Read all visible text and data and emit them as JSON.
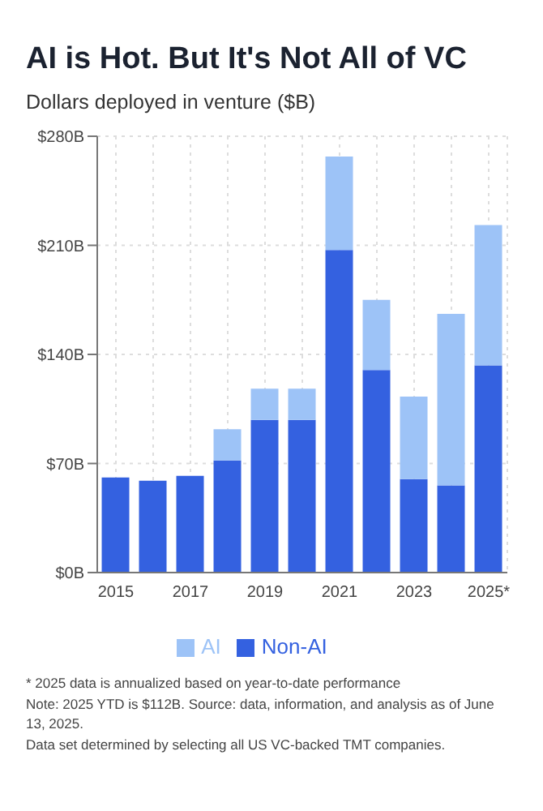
{
  "chart_data": {
    "type": "bar",
    "title": "AI is Hot. But It's Not All of VC",
    "subtitle": "Dollars deployed in venture ($B)",
    "categories": [
      "2015",
      null,
      "2017",
      null,
      "2019",
      null,
      "2021",
      null,
      "2023",
      null,
      "2025*"
    ],
    "series": [
      {
        "name": "Non-AI",
        "color": "#3461e0",
        "values": [
          61,
          59,
          62,
          72,
          98,
          98,
          207,
          130,
          60,
          56,
          133
        ]
      },
      {
        "name": "AI",
        "color": "#9dc3f7",
        "values": [
          0,
          0,
          0,
          20,
          20,
          20,
          60,
          45,
          53,
          110,
          90
        ]
      }
    ],
    "stacked": true,
    "ylim": [
      0,
      280
    ],
    "yticks": [
      {
        "value": 0,
        "label": "$0B"
      },
      {
        "value": 70,
        "label": "$70B"
      },
      {
        "value": 140,
        "label": "$140B"
      },
      {
        "value": 210,
        "label": "$210B"
      },
      {
        "value": 280,
        "label": "$280B"
      }
    ],
    "grid": true,
    "legend": "bottom",
    "annotations": [
      "* 2025 data is annualized based on year-to-date performance",
      "Note: 2025 YTD is $112B. Source: data, information, and analysis as of June 13, 2025.",
      "Data set determined by selecting all US VC-backed TMT companies."
    ]
  }
}
